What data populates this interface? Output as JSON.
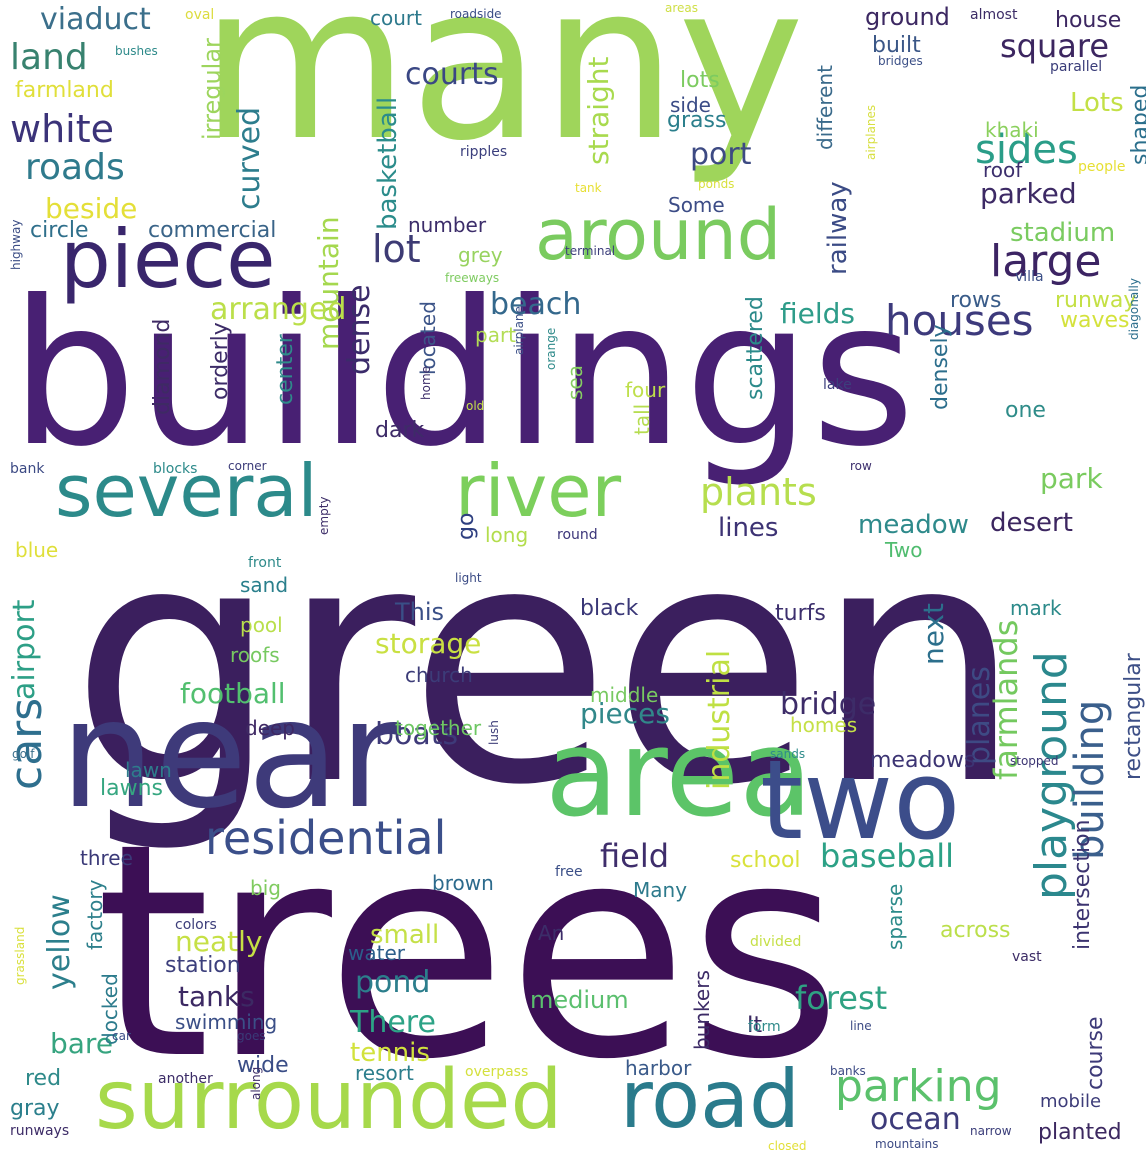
{
  "words": [
    {
      "text": "green",
      "color": "#3b1f5e"
    },
    {
      "text": "trees",
      "color": "#3c0f55"
    },
    {
      "text": "buildings",
      "color": "#482073"
    },
    {
      "text": "many",
      "color": "#9fd55b"
    },
    {
      "text": "near",
      "color": "#3e3a7a"
    },
    {
      "text": "area",
      "color": "#5cc468"
    },
    {
      "text": "two",
      "color": "#3c4d8a"
    },
    {
      "text": "surrounded",
      "color": "#a6d94b"
    },
    {
      "text": "road",
      "color": "#2a7b8c"
    },
    {
      "text": "piece",
      "color": "#39266c"
    },
    {
      "text": "several",
      "color": "#2c8a8a"
    },
    {
      "text": "river",
      "color": "#7ccf5c"
    },
    {
      "text": "around",
      "color": "#7acb5f"
    },
    {
      "text": "residential",
      "color": "#3b4f8a"
    },
    {
      "text": "parking",
      "color": "#5bc16c"
    },
    {
      "text": "cars",
      "color": "#2e6f8e"
    },
    {
      "text": "playground",
      "color": "#2b888d"
    },
    {
      "text": "building",
      "color": "#3a5f8c"
    },
    {
      "text": "large",
      "color": "#3c2463"
    },
    {
      "text": "houses",
      "color": "#3d3a7c"
    },
    {
      "text": "sides",
      "color": "#2a9d88"
    },
    {
      "text": "plants",
      "color": "#b6de4e"
    },
    {
      "text": "white",
      "color": "#3b3379"
    },
    {
      "text": "roads",
      "color": "#2f7a8c"
    },
    {
      "text": "land",
      "color": "#38826f"
    },
    {
      "text": "viaduct",
      "color": "#3b6f8b"
    },
    {
      "text": "square",
      "color": "#3c2660"
    },
    {
      "text": "field",
      "color": "#3e2d6b"
    },
    {
      "text": "baseball",
      "color": "#2ca186"
    },
    {
      "text": "forest",
      "color": "#2fa283"
    },
    {
      "text": "ocean",
      "color": "#3d3b7a"
    },
    {
      "text": "industrial",
      "color": "#bfe043"
    },
    {
      "text": "farmlands",
      "color": "#74c95f"
    },
    {
      "text": "airport",
      "color": "#2d9f86"
    },
    {
      "text": "yellow",
      "color": "#2c7f8c"
    },
    {
      "text": "beach",
      "color": "#34688c"
    },
    {
      "text": "fields",
      "color": "#2e9c89"
    },
    {
      "text": "lot",
      "color": "#3d3b74"
    },
    {
      "text": "courts",
      "color": "#3a4784"
    },
    {
      "text": "mountain",
      "color": "#a5d84f"
    },
    {
      "text": "arranged",
      "color": "#bbdf4a"
    },
    {
      "text": "curved",
      "color": "#2d7d8d"
    },
    {
      "text": "basketball",
      "color": "#2b8c8b"
    },
    {
      "text": "straight",
      "color": "#a8da4e"
    },
    {
      "text": "stadium",
      "color": "#7acb60"
    },
    {
      "text": "parked",
      "color": "#3d2a65"
    },
    {
      "text": "railway",
      "color": "#3b4b85"
    },
    {
      "text": "port",
      "color": "#3d4a83"
    },
    {
      "text": "Lots",
      "color": "#c3e046"
    },
    {
      "text": "dense",
      "color": "#3b2b6a"
    },
    {
      "text": "planes",
      "color": "#3e4a84"
    },
    {
      "text": "rectangular",
      "color": "#3d4f86"
    },
    {
      "text": "intersection",
      "color": "#3c3470"
    },
    {
      "text": "storage",
      "color": "#c9e042"
    },
    {
      "text": "pieces",
      "color": "#31888a"
    },
    {
      "text": "bridge",
      "color": "#3d2c68"
    },
    {
      "text": "boats",
      "color": "#3e3a79"
    },
    {
      "text": "football",
      "color": "#52bf6f"
    },
    {
      "text": "meadow",
      "color": "#2e8a8b"
    },
    {
      "text": "desert",
      "color": "#3c2660"
    },
    {
      "text": "park",
      "color": "#7acb5f"
    },
    {
      "text": "next",
      "color": "#2c6f8c"
    },
    {
      "text": "pond",
      "color": "#2c7e8c"
    },
    {
      "text": "There",
      "color": "#2ca386"
    },
    {
      "text": "tanks",
      "color": "#3c2963"
    },
    {
      "text": "neatly",
      "color": "#c6e045"
    },
    {
      "text": "bare",
      "color": "#36a47f"
    },
    {
      "text": "medium",
      "color": "#5bbf6e"
    },
    {
      "text": "tennis",
      "color": "#d2e23c"
    },
    {
      "text": "small",
      "color": "#c5e048"
    },
    {
      "text": "lines",
      "color": "#3d3374"
    },
    {
      "text": "This",
      "color": "#3a4f87"
    },
    {
      "text": "beside",
      "color": "#e4df38"
    },
    {
      "text": "irregular",
      "color": "#9dd55d"
    },
    {
      "text": "farmland",
      "color": "#e0df3a"
    },
    {
      "text": "circle",
      "color": "#2f6f8b"
    },
    {
      "text": "commercial",
      "color": "#3a6488"
    },
    {
      "text": "number",
      "color": "#3c2d6a"
    },
    {
      "text": "grey",
      "color": "#98d35f"
    },
    {
      "text": "located",
      "color": "#3c5488"
    },
    {
      "text": "orderly",
      "color": "#3d2c68"
    },
    {
      "text": "diamond",
      "color": "#3e2a64"
    },
    {
      "text": "center",
      "color": "#2f8a8a"
    },
    {
      "text": "dark",
      "color": "#3e2b68"
    },
    {
      "text": "part",
      "color": "#b3dd55"
    },
    {
      "text": "four",
      "color": "#bedf4a"
    },
    {
      "text": "scattered",
      "color": "#2c8a8a"
    },
    {
      "text": "sea",
      "color": "#86cd62"
    },
    {
      "text": "tall",
      "color": "#b6dd50"
    },
    {
      "text": "densely",
      "color": "#2c6e8c"
    },
    {
      "text": "one",
      "color": "#2f8c89"
    },
    {
      "text": "different",
      "color": "#3a6a8b"
    },
    {
      "text": "shaped",
      "color": "#2b6f8c"
    },
    {
      "text": "roof",
      "color": "#3c2f6d"
    },
    {
      "text": "ground",
      "color": "#3c2862"
    },
    {
      "text": "built",
      "color": "#3b5787"
    },
    {
      "text": "house",
      "color": "#3c2761"
    },
    {
      "text": "lots",
      "color": "#7ccb60"
    },
    {
      "text": "side",
      "color": "#3b4c86"
    },
    {
      "text": "grass",
      "color": "#2b7f8c"
    },
    {
      "text": "khaki",
      "color": "#8bd05d"
    },
    {
      "text": "Some",
      "color": "#3c4c86"
    },
    {
      "text": "rows",
      "color": "#3a5c89"
    },
    {
      "text": "runway",
      "color": "#c4e045"
    },
    {
      "text": "waves",
      "color": "#d4e23c"
    },
    {
      "text": "go",
      "color": "#2e3f80"
    },
    {
      "text": "long",
      "color": "#b3dd4d"
    },
    {
      "text": "Two",
      "color": "#50bc6f"
    },
    {
      "text": "sand",
      "color": "#2a7f8c"
    },
    {
      "text": "pool",
      "color": "#b9df4b"
    },
    {
      "text": "roofs",
      "color": "#77c960"
    },
    {
      "text": "deep",
      "color": "#3e2863"
    },
    {
      "text": "church",
      "color": "#3c3c78"
    },
    {
      "text": "middle",
      "color": "#78c961"
    },
    {
      "text": "together",
      "color": "#6ec763"
    },
    {
      "text": "homes",
      "color": "#c5e047"
    },
    {
      "text": "black",
      "color": "#3a3777"
    },
    {
      "text": "turfs",
      "color": "#3c2f6d"
    },
    {
      "text": "mark",
      "color": "#2c8a8a"
    },
    {
      "text": "lawn",
      "color": "#2e7c8c"
    },
    {
      "text": "lawns",
      "color": "#35a680"
    },
    {
      "text": "meadows",
      "color": "#3c3473"
    },
    {
      "text": "course",
      "color": "#3d3a78"
    },
    {
      "text": "three",
      "color": "#3b3a78"
    },
    {
      "text": "brown",
      "color": "#2c6a8c"
    },
    {
      "text": "school",
      "color": "#d9e23b"
    },
    {
      "text": "Many",
      "color": "#2d7a8c"
    },
    {
      "text": "big",
      "color": "#7fcb5f"
    },
    {
      "text": "factory",
      "color": "#2e808c"
    },
    {
      "text": "station",
      "color": "#3c3f7c"
    },
    {
      "text": "water",
      "color": "#2c5e8b"
    },
    {
      "text": "An",
      "color": "#3c2d69"
    },
    {
      "text": "across",
      "color": "#bbdf4b"
    },
    {
      "text": "sparse",
      "color": "#2c8b8a"
    },
    {
      "text": "It",
      "color": "#3b2962"
    },
    {
      "text": "bunkers",
      "color": "#3c2b66"
    },
    {
      "text": "swimming",
      "color": "#3b4f87"
    },
    {
      "text": "docked",
      "color": "#2c7b8c"
    },
    {
      "text": "resort",
      "color": "#2c7e8c"
    },
    {
      "text": "harbor",
      "color": "#3a5a8a"
    },
    {
      "text": "wide",
      "color": "#3a4d86"
    },
    {
      "text": "red",
      "color": "#2f8a8a"
    },
    {
      "text": "gray",
      "color": "#2b7f8c"
    },
    {
      "text": "runways",
      "color": "#3d2c67"
    },
    {
      "text": "mobile",
      "color": "#3d3c79"
    },
    {
      "text": "planted",
      "color": "#3c2860"
    },
    {
      "text": "court",
      "color": "#2d798c"
    },
    {
      "text": "oval",
      "color": "#dcdc3f"
    },
    {
      "text": "roadside",
      "color": "#3a4d85"
    },
    {
      "text": "areas",
      "color": "#cfdf45"
    },
    {
      "text": "almost",
      "color": "#3c2c66"
    },
    {
      "text": "bushes",
      "color": "#2e8a8a"
    },
    {
      "text": "bridges",
      "color": "#3c5087"
    },
    {
      "text": "parallel",
      "color": "#3a3d79"
    },
    {
      "text": "ripples",
      "color": "#3b3f7d"
    },
    {
      "text": "people",
      "color": "#e6df33"
    },
    {
      "text": "ponds",
      "color": "#d8e03d"
    },
    {
      "text": "tank",
      "color": "#e7df33"
    },
    {
      "text": "terminal",
      "color": "#3c3e7b"
    },
    {
      "text": "freeways",
      "color": "#7ecb60"
    },
    {
      "text": "villa",
      "color": "#3b4f87"
    },
    {
      "text": "highway",
      "color": "#3b4d85"
    },
    {
      "text": "airplanes",
      "color": "#d7df3f"
    },
    {
      "text": "diagonally",
      "color": "#2c6e8c"
    },
    {
      "text": "lake",
      "color": "#3c3f7c"
    },
    {
      "text": "home",
      "color": "#3c2d69"
    },
    {
      "text": "airplane",
      "color": "#3b4f87"
    },
    {
      "text": "old",
      "color": "#c6e04a"
    },
    {
      "text": "orange",
      "color": "#2e8a8a"
    },
    {
      "text": "bank",
      "color": "#3c4a84"
    },
    {
      "text": "blocks",
      "color": "#2c8a8a"
    },
    {
      "text": "corner",
      "color": "#3a3a78"
    },
    {
      "text": "row",
      "color": "#3c2f6d"
    },
    {
      "text": "empty",
      "color": "#3c2d68"
    },
    {
      "text": "blue",
      "color": "#dfdf3a"
    },
    {
      "text": "round",
      "color": "#3b3579"
    },
    {
      "text": "front",
      "color": "#2e8a8a"
    },
    {
      "text": "light",
      "color": "#3b4b85"
    },
    {
      "text": "golf",
      "color": "#3b6f8b"
    },
    {
      "text": "sands",
      "color": "#2f8b8a"
    },
    {
      "text": "stopped",
      "color": "#3c3573"
    },
    {
      "text": "lush",
      "color": "#3c3d78"
    },
    {
      "text": "free",
      "color": "#3b4f87"
    },
    {
      "text": "colors",
      "color": "#3c3d7a"
    },
    {
      "text": "divided",
      "color": "#c6e048"
    },
    {
      "text": "vast",
      "color": "#3c2c66"
    },
    {
      "text": "grassland",
      "color": "#d9e03c"
    },
    {
      "text": "car",
      "color": "#3a4d86"
    },
    {
      "text": "goes",
      "color": "#3a3a77"
    },
    {
      "text": "form",
      "color": "#2e8a8a"
    },
    {
      "text": "line",
      "color": "#3c4a84"
    },
    {
      "text": "another",
      "color": "#3c2c67"
    },
    {
      "text": "overpass",
      "color": "#d4e03d"
    },
    {
      "text": "banks",
      "color": "#3c4a84"
    },
    {
      "text": "along",
      "color": "#3c2c67"
    },
    {
      "text": "closed",
      "color": "#e2df38"
    },
    {
      "text": "mountains",
      "color": "#3c4a84"
    },
    {
      "text": "narrow",
      "color": "#3a3d79"
    }
  ]
}
